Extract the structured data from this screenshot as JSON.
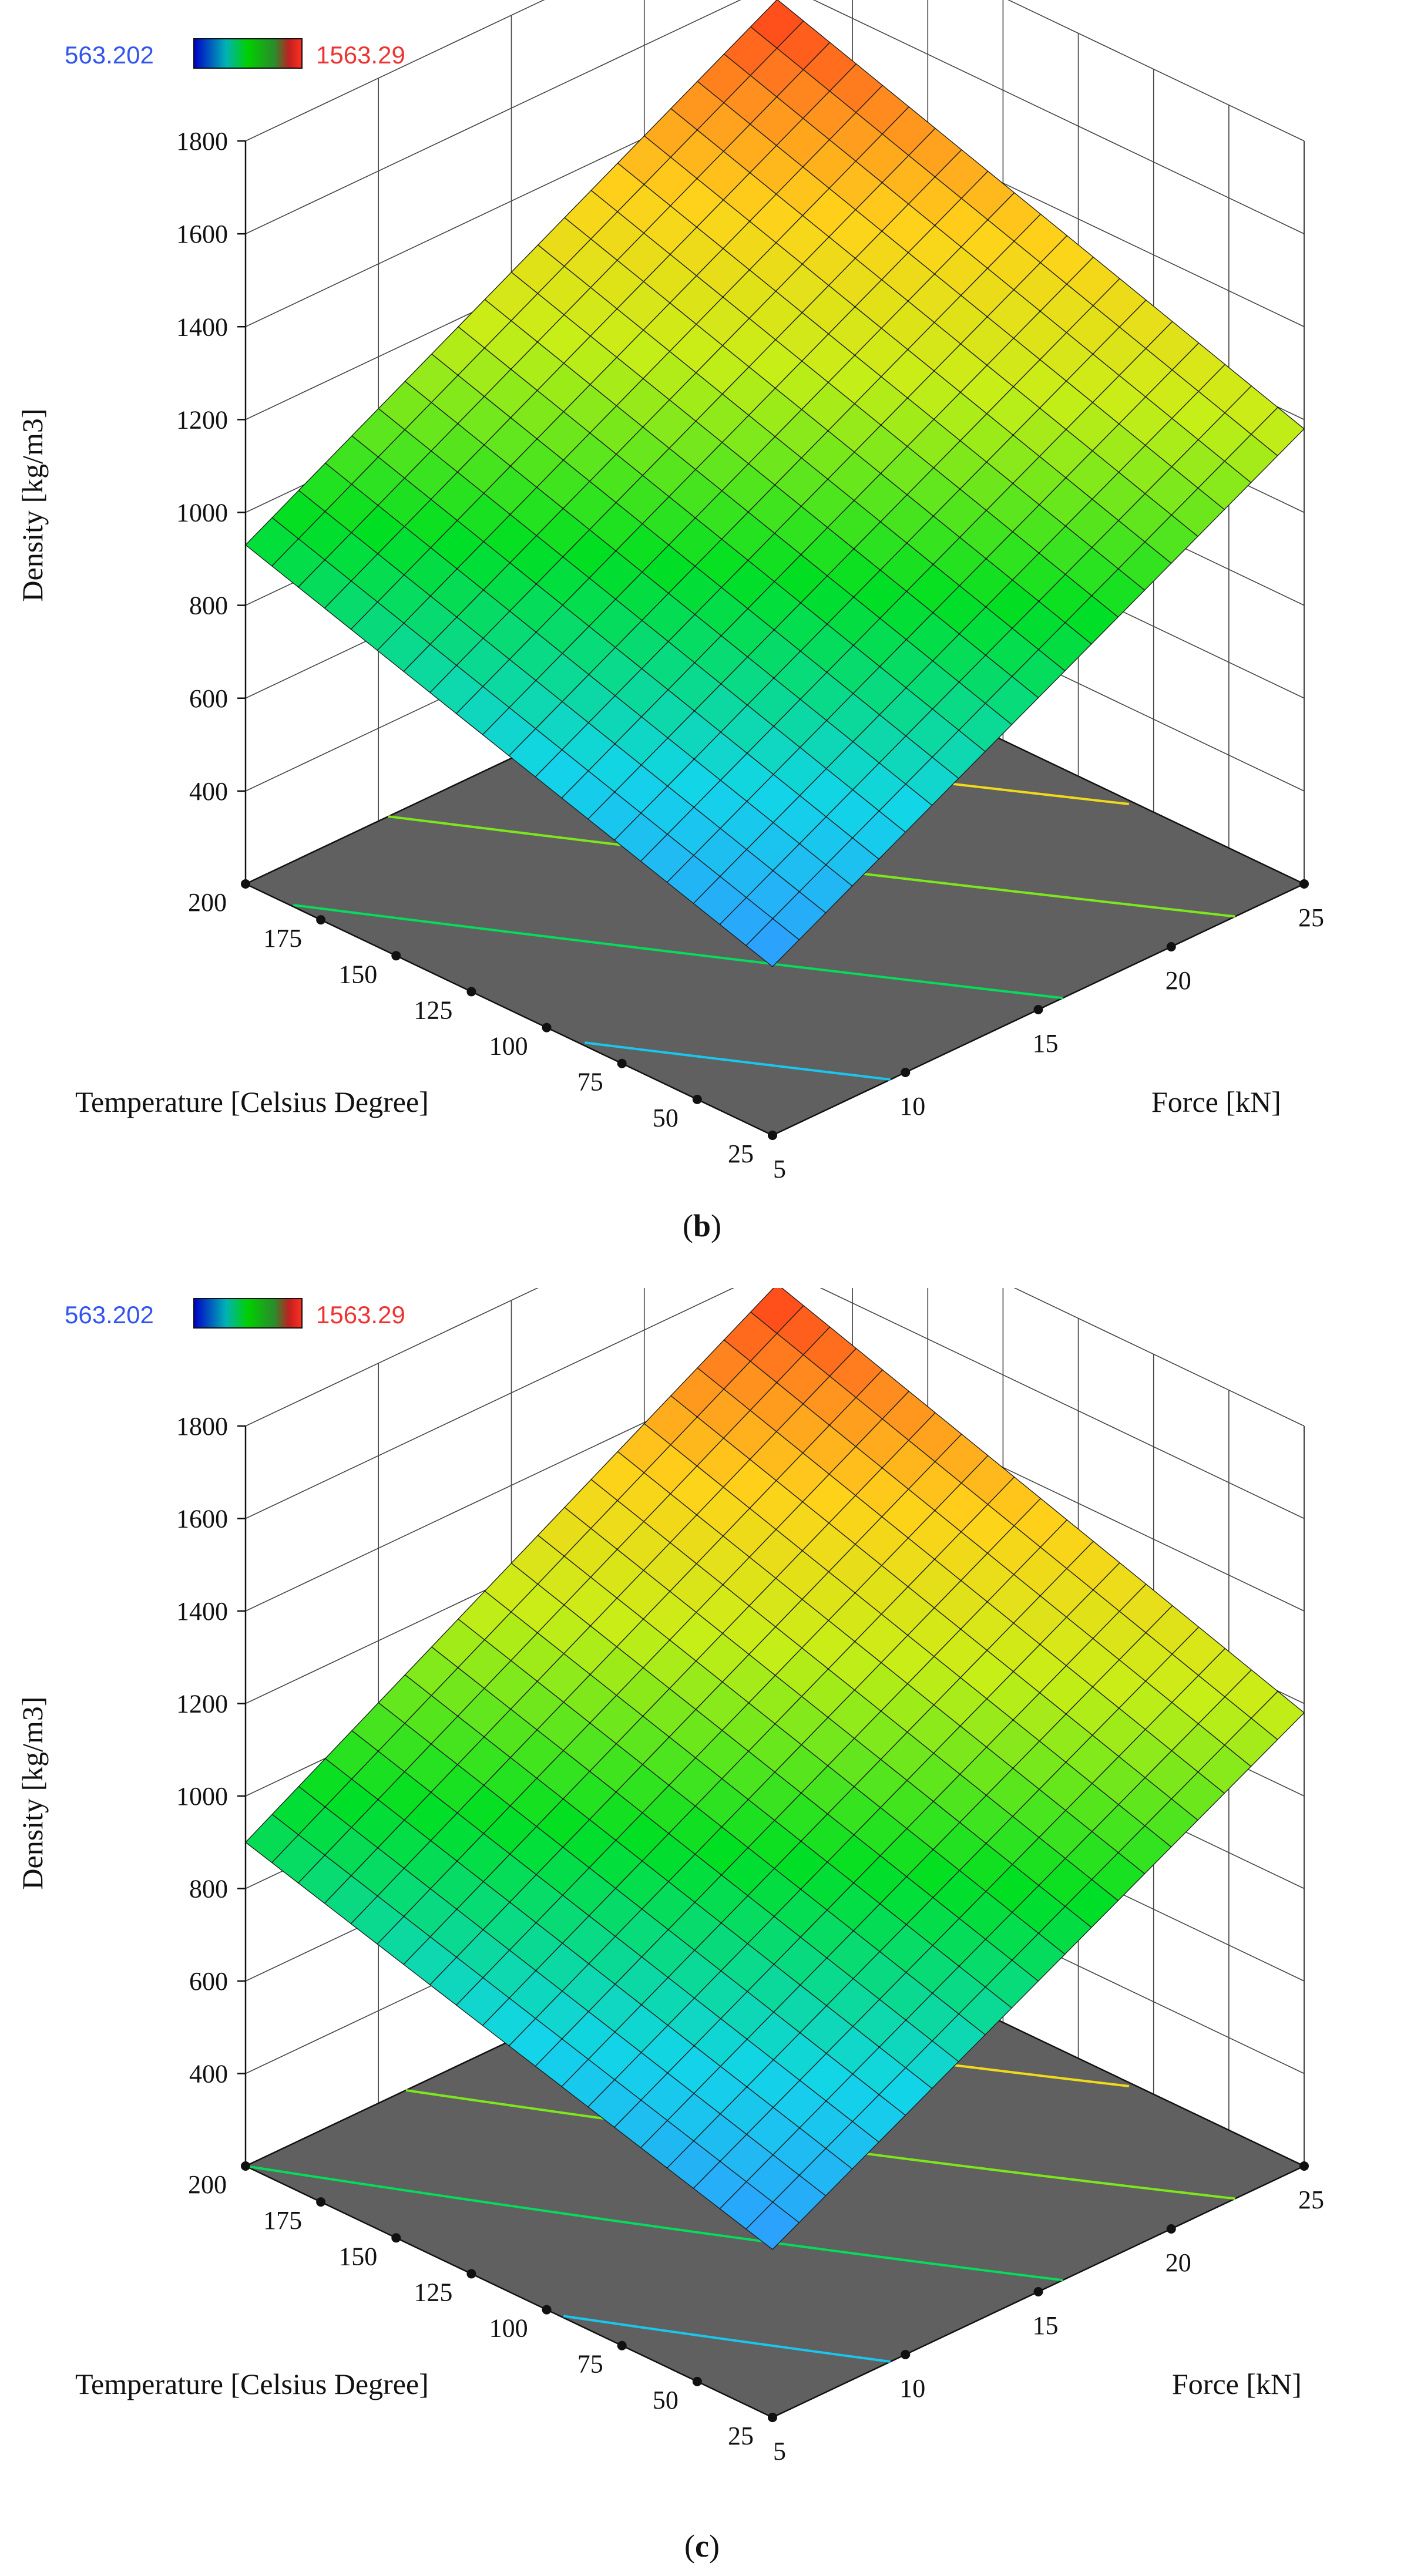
{
  "chart_data": [
    {
      "type": "surface3d",
      "panel_label": "(b)",
      "caption_prefix": "(",
      "caption_letter": "b",
      "caption_suffix": ")",
      "legend": {
        "min": "563.202",
        "max": "1563.29"
      },
      "zlabel": "Density [kg/m3]",
      "xlabel": "Temperature [Celsius Degree]",
      "ylabel": "Force [kN]",
      "z_ticks": [
        "400",
        "600",
        "800",
        "1000",
        "1200",
        "1400",
        "1600",
        "1800"
      ],
      "x_ticks": [
        "200",
        "175",
        "150",
        "125",
        "100",
        "75",
        "50",
        "25"
      ],
      "y_ticks": [
        "5",
        "10",
        "15",
        "20",
        "25"
      ],
      "xlim": [
        25,
        200
      ],
      "ylim": [
        5,
        25
      ],
      "zlim": [
        200,
        1800
      ],
      "surface": {
        "z_at_T25_F5": 563.202,
        "z_at_T200_F5": 930,
        "z_at_T25_F25": 1180,
        "z_at_T200_F25": 1563.29
      },
      "contour_levels": [
        700,
        900,
        1100,
        1300
      ],
      "colors": {
        "low": "#1e90ff",
        "mid": "#00e000",
        "high": "#ff3b1a",
        "floor": "#606060",
        "legmin": "#3355ee",
        "legmax": "#ee3333"
      }
    },
    {
      "type": "surface3d",
      "panel_label": "(c)",
      "caption_prefix": "(",
      "caption_letter": "c",
      "caption_suffix": ")",
      "legend": {
        "min": "563.202",
        "max": "1563.29"
      },
      "zlabel": "Density [kg/m3]",
      "xlabel": "Temperature [Celsius Degree]",
      "ylabel": "Force [kN]",
      "z_ticks": [
        "400",
        "600",
        "800",
        "1000",
        "1200",
        "1400",
        "1600",
        "1800"
      ],
      "x_ticks": [
        "200",
        "175",
        "150",
        "125",
        "100",
        "75",
        "50",
        "25"
      ],
      "y_ticks": [
        "5",
        "10",
        "15",
        "20",
        "25"
      ],
      "xlim": [
        25,
        200
      ],
      "ylim": [
        5,
        25
      ],
      "zlim": [
        200,
        1800
      ],
      "surface": {
        "z_at_T25_F5": 563.202,
        "z_at_T200_F5": 900,
        "z_at_T25_F25": 1180,
        "z_at_T200_F25": 1563.29
      },
      "contour_levels": [
        700,
        900,
        1100,
        1300
      ],
      "colors": {
        "low": "#1e90ff",
        "mid": "#00e000",
        "high": "#ff3b1a",
        "floor": "#606060",
        "legmin": "#3355ee",
        "legmax": "#ee3333"
      }
    }
  ]
}
